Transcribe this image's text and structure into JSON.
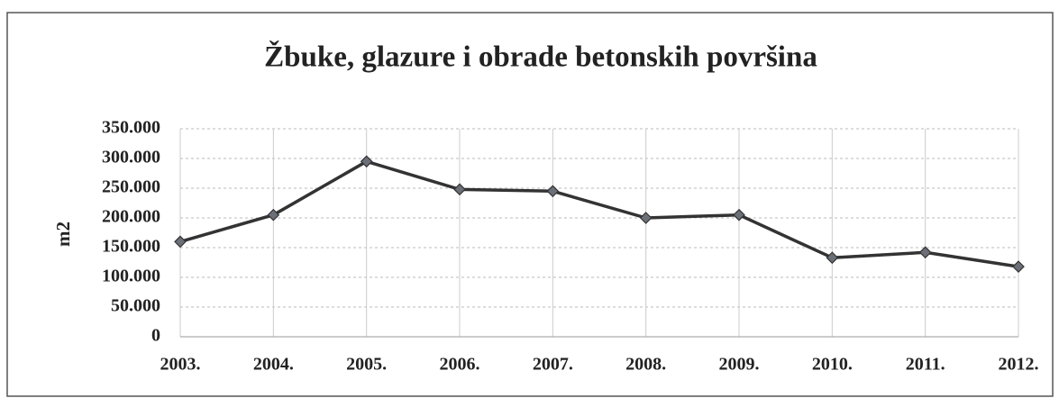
{
  "chart_data": {
    "type": "line",
    "title": "Žbuke, glazure i obrade betonskih površina",
    "y_label": "m2",
    "categories": [
      "2003.",
      "2004.",
      "2005.",
      "2006.",
      "2007.",
      "2008.",
      "2009.",
      "2010.",
      "2011.",
      "2012."
    ],
    "values": [
      160000,
      205000,
      295000,
      248000,
      245000,
      200000,
      205000,
      133000,
      142000,
      118000
    ],
    "color": "#333333",
    "marker_color": "#6b6f78",
    "ylim": [
      0,
      350000
    ],
    "yticks": [
      0,
      {
        "value": 50000,
        "label": "50.000"
      },
      {
        "value": 100000,
        "label": "100.000"
      },
      {
        "value": 150000,
        "label": "150.000"
      },
      {
        "value": 200000,
        "label": "200.000"
      },
      {
        "value": 250000,
        "label": "250.000"
      },
      {
        "value": 300000,
        "label": "300.000"
      },
      {
        "value": 350000,
        "label": "350.000"
      }
    ],
    "grid": true
  }
}
